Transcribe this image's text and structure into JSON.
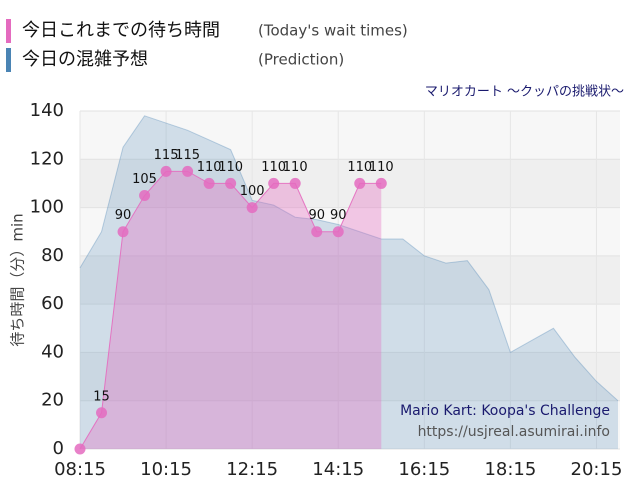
{
  "chart_data": {
    "type": "area",
    "title": "マリオカート ～クッパの挑戦状～",
    "y_label": "待ち時間（分）min",
    "annotations": [
      "Mario Kart: Koopa's Challenge",
      "https://usjreal.asumirai.info"
    ],
    "categories": [
      "08:15",
      null,
      null,
      null,
      "10:15",
      null,
      null,
      null,
      "12:15",
      null,
      null,
      null,
      "14:15",
      null,
      null,
      null,
      "16:15",
      null,
      null,
      null,
      "18:15",
      null,
      null,
      null,
      "20:15",
      null
    ],
    "series": [
      {
        "name": "今日これまでの待ち時間",
        "subtitle": "(Today's wait times)",
        "color": "#e46bbf",
        "markers": true,
        "values": [
          0,
          15,
          90,
          105,
          115,
          115,
          110,
          110,
          100,
          110,
          110,
          90,
          90,
          110,
          110,
          null,
          null,
          null,
          null,
          null,
          null,
          null,
          null,
          null,
          null,
          null
        ]
      },
      {
        "name": "今日の混雑予想",
        "subtitle": "(Prediction)",
        "color": "#4a84b4",
        "markers": false,
        "values": [
          75,
          90,
          125,
          138,
          135,
          132,
          128,
          124,
          103,
          101,
          96,
          95,
          93,
          90,
          87,
          87,
          80,
          77,
          78,
          66,
          40,
          45,
          50,
          38,
          28,
          20
        ]
      }
    ],
    "ylim": [
      0,
      140
    ],
    "yticks": [
      0,
      20,
      40,
      60,
      80,
      100,
      120,
      140
    ],
    "grid": true
  }
}
